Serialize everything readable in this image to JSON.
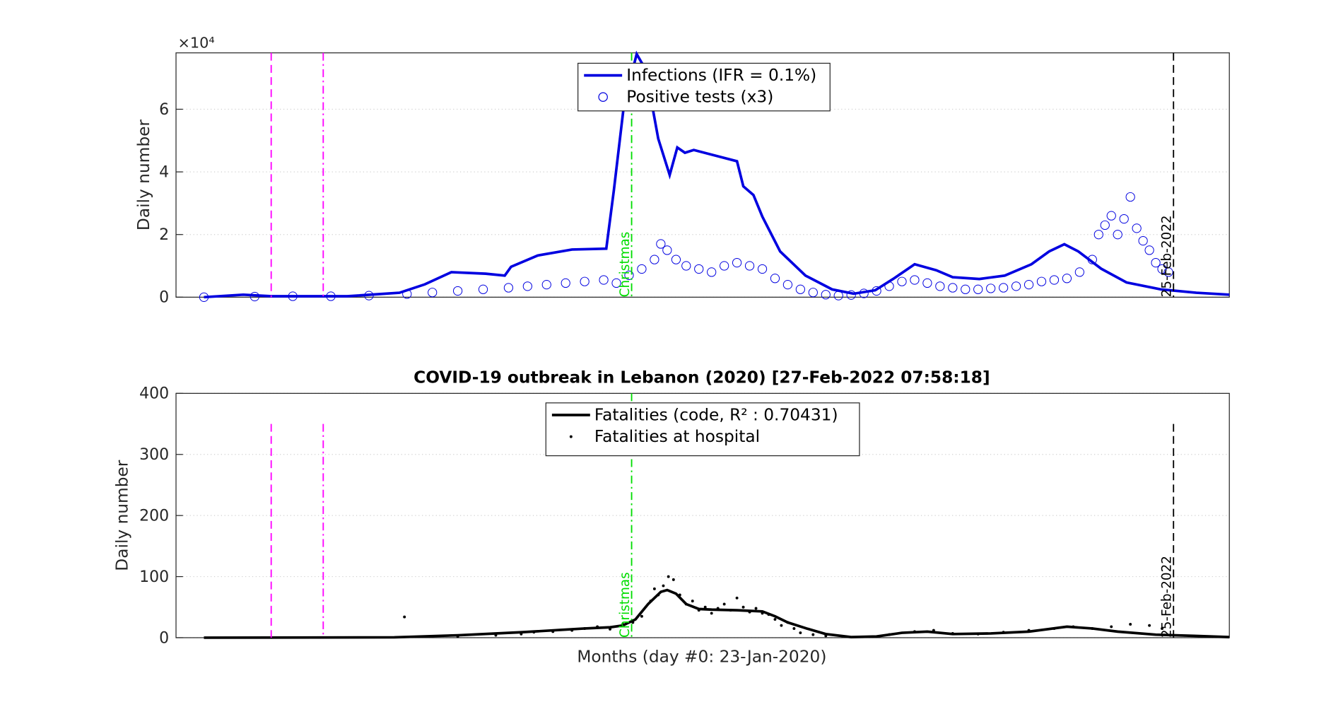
{
  "chart_data": [
    {
      "type": "line",
      "ylabel": "Daily number",
      "multiplier": "×10⁴",
      "xlim": [
        -22,
        808
      ],
      "ylim": [
        0,
        78000
      ],
      "yticks": [
        {
          "value": 0,
          "label": "0"
        },
        {
          "value": 20000,
          "label": "2"
        },
        {
          "value": 40000,
          "label": "4"
        },
        {
          "value": 60000,
          "label": "6"
        }
      ],
      "grid": true,
      "legend": "top",
      "series": [
        {
          "name": "Infections (IFR = 0.1%)",
          "style": "line",
          "color": "#0000e0",
          "x": [
            0,
            31,
            53,
            113,
            154,
            174,
            195,
            222,
            237,
            242,
            263,
            290,
            317,
            323,
            331,
            341,
            348,
            358,
            367,
            373,
            379,
            386,
            399,
            420,
            425,
            433,
            440,
            454,
            474,
            495,
            512,
            529,
            543,
            560,
            577,
            590,
            611,
            631,
            652,
            666,
            678,
            689,
            707,
            727,
            754,
            782,
            808
          ],
          "values": [
            0,
            800,
            300,
            300,
            1400,
            4100,
            8000,
            7500,
            6900,
            9700,
            13300,
            15200,
            15500,
            34000,
            61600,
            77600,
            72700,
            50600,
            39000,
            47800,
            46100,
            47000,
            45600,
            43400,
            35400,
            32600,
            25700,
            14600,
            6900,
            2500,
            1100,
            2200,
            5800,
            10500,
            8600,
            6400,
            5800,
            6900,
            10500,
            14600,
            16900,
            14600,
            9100,
            4700,
            2500,
            1400,
            800
          ]
        },
        {
          "name": "Positive tests (x3)",
          "style": "circles",
          "color": "#0000e0",
          "x": [
            0,
            40,
            70,
            100,
            130,
            160,
            180,
            200,
            220,
            240,
            255,
            270,
            285,
            300,
            315,
            325,
            335,
            345,
            355,
            360,
            365,
            372,
            380,
            390,
            400,
            410,
            420,
            430,
            440,
            450,
            460,
            470,
            480,
            490,
            500,
            510,
            520,
            530,
            540,
            550,
            560,
            570,
            580,
            590,
            600,
            610,
            620,
            630,
            640,
            650,
            660,
            670,
            680,
            690,
            700,
            705,
            710,
            715,
            720,
            725,
            730,
            735,
            740,
            745,
            750,
            755,
            760
          ],
          "values": [
            0,
            200,
            300,
            300,
            500,
            1000,
            1500,
            2000,
            2500,
            3000,
            3500,
            4000,
            4500,
            5000,
            5500,
            4500,
            7000,
            9000,
            12000,
            17000,
            15000,
            12000,
            10000,
            9000,
            8000,
            10000,
            11000,
            10000,
            9000,
            6000,
            4000,
            2500,
            1500,
            800,
            500,
            700,
            1200,
            2000,
            3500,
            5000,
            5500,
            4500,
            3500,
            3000,
            2500,
            2500,
            2800,
            3000,
            3500,
            4000,
            5000,
            5500,
            6000,
            8000,
            12000,
            20000,
            23000,
            26000,
            20000,
            25000,
            32000,
            22000,
            18000,
            15000,
            11000,
            9000,
            8000
          ]
        }
      ],
      "events": [
        {
          "x": 53,
          "color": "#ff00ff",
          "style": "dashed"
        },
        {
          "x": 94,
          "color": "#ff00ff",
          "style": "dashdot"
        },
        {
          "x": 337,
          "color": "#00dd00",
          "style": "dashdot",
          "label": "Christmas"
        },
        {
          "x": 764,
          "color": "#000000",
          "style": "dashed",
          "label": "25-Feb-2022"
        }
      ]
    },
    {
      "type": "line",
      "title": "COVID-19 outbreak in Lebanon (2020) [27-Feb-2022 07:58:18]",
      "xlabel": "Months (day #0: 23-Jan-2020)",
      "ylabel": "Daily number",
      "xlim": [
        -22,
        808
      ],
      "ylim": [
        0,
        400
      ],
      "yticks": [
        0,
        100,
        200,
        300,
        400
      ],
      "grid": true,
      "legend": "top",
      "series": [
        {
          "name": "Fatalities (code, R² : 0.70431)",
          "style": "line",
          "color": "#000000",
          "x": [
            0,
            150,
            200,
            250,
            300,
            320,
            330,
            340,
            350,
            360,
            365,
            372,
            380,
            390,
            400,
            420,
            440,
            450,
            460,
            475,
            490,
            510,
            530,
            550,
            570,
            590,
            620,
            650,
            680,
            700,
            720,
            750,
            780,
            808
          ],
          "values": [
            0,
            0.5,
            4,
            9,
            15,
            17,
            20,
            30,
            55,
            75,
            78,
            72,
            55,
            47,
            46,
            45,
            43,
            35,
            25,
            15,
            6,
            1,
            2,
            8,
            10,
            6,
            7,
            10,
            18,
            15,
            10,
            5,
            3,
            1
          ]
        },
        {
          "name": "Fatalities at hospital",
          "style": "dots",
          "color": "#000000",
          "x": [
            158,
            200,
            230,
            250,
            260,
            275,
            290,
            300,
            310,
            320,
            330,
            338,
            345,
            352,
            355,
            358,
            362,
            366,
            370,
            375,
            380,
            385,
            390,
            395,
            400,
            405,
            410,
            415,
            420,
            425,
            430,
            435,
            440,
            445,
            450,
            455,
            460,
            465,
            470,
            480,
            490,
            540,
            560,
            575,
            590,
            610,
            630,
            650,
            670,
            685,
            700,
            715,
            730,
            745,
            755
          ],
          "values": [
            34,
            2,
            4,
            6,
            9,
            10,
            12,
            15,
            18,
            14,
            22,
            25,
            35,
            60,
            80,
            70,
            85,
            100,
            95,
            70,
            55,
            60,
            45,
            50,
            40,
            48,
            55,
            45,
            65,
            50,
            42,
            48,
            40,
            38,
            30,
            20,
            25,
            15,
            8,
            5,
            3,
            5,
            10,
            12,
            7,
            6,
            9,
            12,
            15,
            18,
            15,
            18,
            22,
            20,
            15
          ]
        }
      ],
      "events": [
        {
          "x": 53,
          "color": "#ff00ff",
          "style": "dashed",
          "ymax": 350
        },
        {
          "x": 94,
          "color": "#ff00ff",
          "style": "dashdot",
          "ymax": 350
        },
        {
          "x": 337,
          "color": "#00dd00",
          "style": "dashdot",
          "label": "Christmas"
        },
        {
          "x": 764,
          "color": "#000000",
          "style": "dashed",
          "label": "25-Feb-2022",
          "ymax": 350
        }
      ]
    }
  ]
}
